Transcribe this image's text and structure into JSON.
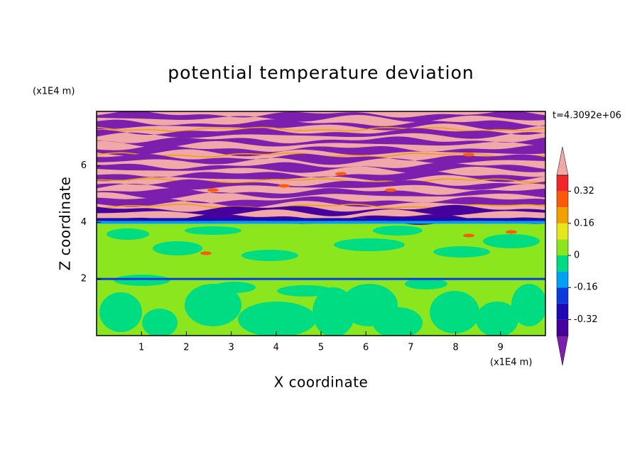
{
  "chart_data": {
    "type": "contour",
    "title": "potential temperature deviation",
    "x_label": "X coordinate",
    "y_label": "Z coordinate",
    "x_unit": "(x1E4 m)",
    "y_unit": "(x1E4 m)",
    "annotation": "t=4.3092e+06",
    "xlim": [
      0,
      10
    ],
    "xticks": [
      1,
      2,
      3,
      4,
      5,
      6,
      7,
      8,
      9
    ],
    "ylim": [
      0,
      7.92
    ],
    "yticks": [
      2,
      4,
      6
    ],
    "colorbar": {
      "levels": [
        -0.4,
        -0.32,
        -0.24,
        -0.16,
        -0.08,
        0,
        0.08,
        0.16,
        0.24,
        0.32,
        0.4
      ],
      "ticks": [
        -0.32,
        -0.16,
        0,
        0.16,
        0.32
      ],
      "colors": [
        "#7d1fae",
        "#46009b",
        "#1e0ab4",
        "#0a3cdc",
        "#00a0f0",
        "#00dc82",
        "#8ce61e",
        "#e6e61e",
        "#f0a000",
        "#fa5a0a",
        "#f02828",
        "#f0a8a8"
      ]
    }
  }
}
